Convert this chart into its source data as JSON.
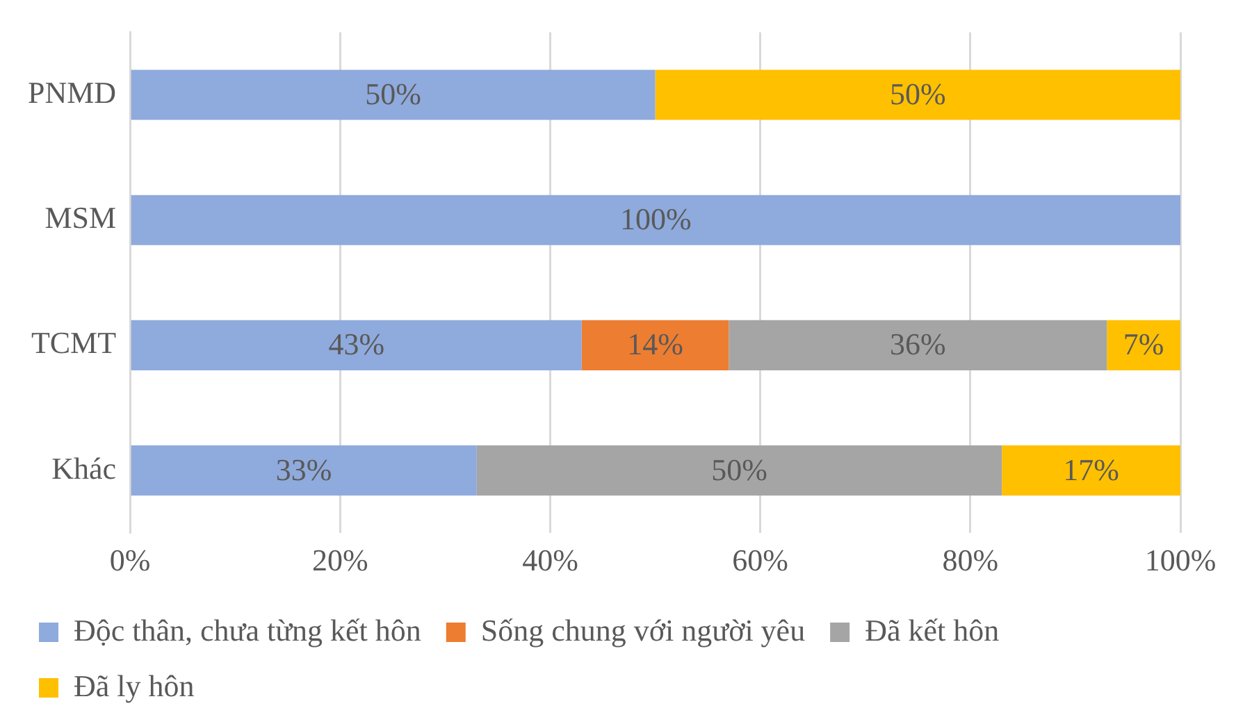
{
  "chart_data": {
    "type": "bar",
    "orientation": "horizontal",
    "stacked": true,
    "categories": [
      "PNMD",
      "MSM",
      "TCMT",
      "Khác"
    ],
    "series": [
      {
        "name": "Độc thân, chưa từng kết hôn",
        "color": "#8faadc",
        "values": [
          50,
          100,
          43,
          33
        ],
        "value_labels": [
          "50%",
          "100%",
          "43%",
          "33%"
        ]
      },
      {
        "name": "Sống chung với người yêu",
        "color": "#ed7d31",
        "values": [
          null,
          null,
          14,
          null
        ],
        "value_labels": [
          null,
          null,
          "14%",
          null
        ]
      },
      {
        "name": "Đã kết hôn",
        "color": "#a5a5a5",
        "values": [
          null,
          null,
          36,
          50
        ],
        "value_labels": [
          null,
          null,
          "36%",
          "50%"
        ]
      },
      {
        "name": "Đã ly hôn",
        "color": "#ffc000",
        "values": [
          50,
          null,
          7,
          17
        ],
        "value_labels": [
          "50%",
          null,
          "7%",
          "17%"
        ]
      }
    ],
    "xlim": [
      0,
      100
    ],
    "xticks": [
      {
        "value": 0,
        "label": "0%"
      },
      {
        "value": 20,
        "label": "20%"
      },
      {
        "value": 40,
        "label": "40%"
      },
      {
        "value": 60,
        "label": "60%"
      },
      {
        "value": 80,
        "label": "80%"
      },
      {
        "value": 100,
        "label": "100%"
      }
    ],
    "grid": "x",
    "legend": "bottom"
  }
}
